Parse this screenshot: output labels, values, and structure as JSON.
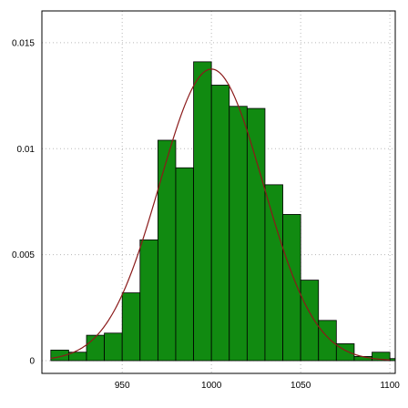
{
  "chart_data": {
    "type": "bar",
    "subtype": "histogram",
    "title": "",
    "xlabel": "",
    "ylabel": "",
    "xlim": [
      905,
      1103
    ],
    "ylim": [
      -0.0006,
      0.0165
    ],
    "grid": true,
    "x_ticks": [
      950,
      1000,
      1050,
      1100
    ],
    "y_ticks": [
      0,
      0.005,
      0.01,
      0.015
    ],
    "x_tick_labels": [
      "950",
      "1000",
      "1050",
      "1100"
    ],
    "y_tick_labels": [
      "0",
      "0.005",
      "0.01",
      "0.015"
    ],
    "bin_width": 10,
    "bins": [
      {
        "x0": 910,
        "x1": 920,
        "value": 0.0005
      },
      {
        "x0": 920,
        "x1": 930,
        "value": 0.0004
      },
      {
        "x0": 930,
        "x1": 940,
        "value": 0.0012
      },
      {
        "x0": 940,
        "x1": 950,
        "value": 0.0013
      },
      {
        "x0": 950,
        "x1": 960,
        "value": 0.0032
      },
      {
        "x0": 960,
        "x1": 970,
        "value": 0.0057
      },
      {
        "x0": 970,
        "x1": 980,
        "value": 0.0104
      },
      {
        "x0": 980,
        "x1": 990,
        "value": 0.0091
      },
      {
        "x0": 990,
        "x1": 1000,
        "value": 0.0141
      },
      {
        "x0": 1000,
        "x1": 1010,
        "value": 0.013
      },
      {
        "x0": 1010,
        "x1": 1020,
        "value": 0.012
      },
      {
        "x0": 1020,
        "x1": 1030,
        "value": 0.0119
      },
      {
        "x0": 1030,
        "x1": 1040,
        "value": 0.0083
      },
      {
        "x0": 1040,
        "x1": 1050,
        "value": 0.0069
      },
      {
        "x0": 1050,
        "x1": 1060,
        "value": 0.0038
      },
      {
        "x0": 1060,
        "x1": 1070,
        "value": 0.0019
      },
      {
        "x0": 1070,
        "x1": 1080,
        "value": 0.0008
      },
      {
        "x0": 1080,
        "x1": 1090,
        "value": 0.0002
      },
      {
        "x0": 1090,
        "x1": 1100,
        "value": 0.0004
      },
      {
        "x0": 1100,
        "x1": 1110,
        "value": 0.0001
      }
    ],
    "curve": {
      "type": "normal-density",
      "mean": 1000,
      "sd": 29,
      "x_range": [
        910,
        1100
      ]
    },
    "colors": {
      "bar_fill": "#118a11",
      "bar_edge": "#000000",
      "curve": "#8b1a1a",
      "grid": "#b8b8b8"
    }
  }
}
